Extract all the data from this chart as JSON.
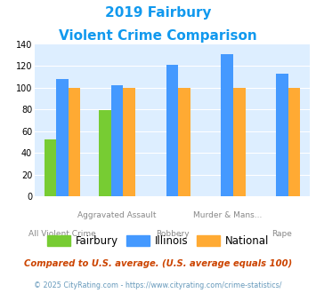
{
  "title_line1": "2019 Fairbury",
  "title_line2": "Violent Crime Comparison",
  "xticklabels_top": [
    "",
    "Aggravated Assault",
    "",
    "Murder & Mans...",
    ""
  ],
  "xticklabels_bot": [
    "All Violent Crime",
    "",
    "Robbery",
    "",
    "Rape"
  ],
  "fairbury": [
    52,
    79,
    0,
    0,
    0
  ],
  "illinois": [
    108,
    102,
    121,
    131,
    113
  ],
  "national": [
    100,
    100,
    100,
    100,
    100
  ],
  "fairbury_color": "#77cc33",
  "illinois_color": "#4499ff",
  "national_color": "#ffaa33",
  "ylim": [
    0,
    140
  ],
  "yticks": [
    0,
    20,
    40,
    60,
    80,
    100,
    120,
    140
  ],
  "plot_bg": "#ddeeff",
  "legend_labels": [
    "Fairbury",
    "Illinois",
    "National"
  ],
  "footnote1": "Compared to U.S. average. (U.S. average equals 100)",
  "footnote2": "© 2025 CityRating.com - https://www.cityrating.com/crime-statistics/",
  "title_color": "#1199ee",
  "footnote1_color": "#cc4400",
  "footnote2_color": "#6699bb"
}
